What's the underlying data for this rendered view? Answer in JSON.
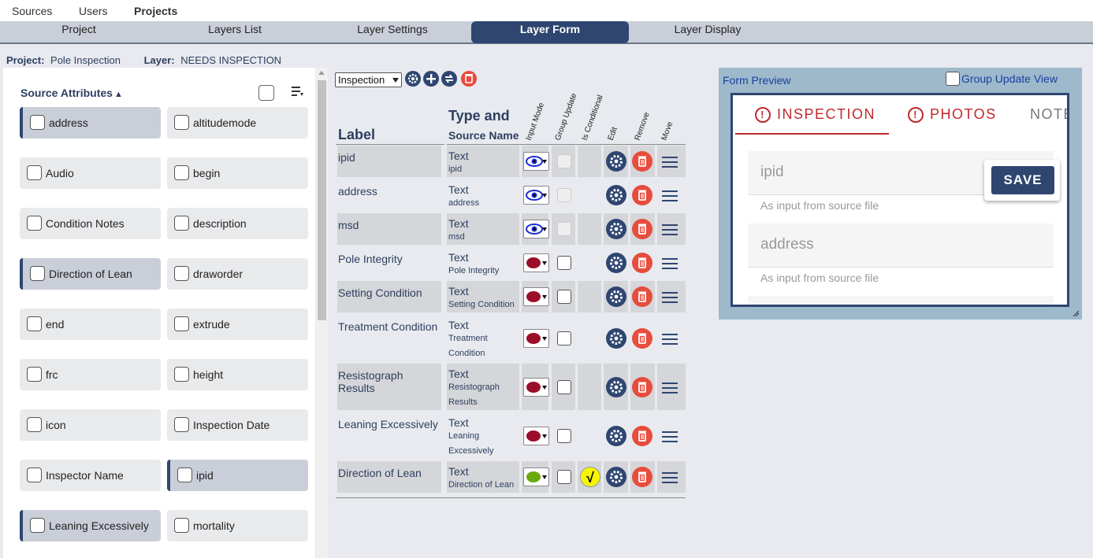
{
  "topnav": {
    "sources": "Sources",
    "users": "Users",
    "projects": "Projects"
  },
  "tabs": [
    "Project",
    "Layers List",
    "Layer Settings",
    "Layer Form",
    "Layer Display"
  ],
  "projinfo": {
    "project_label": "Project:",
    "project": "Pole Inspection",
    "layer_label": "Layer:",
    "layer": "NEEDS INSPECTION"
  },
  "source_attributes": {
    "title": "Source Attributes",
    "items": [
      {
        "label": "address",
        "selected": true
      },
      {
        "label": "altitudemode",
        "selected": false
      },
      {
        "label": "Audio",
        "selected": false
      },
      {
        "label": "begin",
        "selected": false
      },
      {
        "label": "Condition Notes",
        "selected": false
      },
      {
        "label": "description",
        "selected": false
      },
      {
        "label": "Direction of Lean",
        "selected": true
      },
      {
        "label": "draworder",
        "selected": false
      },
      {
        "label": "end",
        "selected": false
      },
      {
        "label": "extrude",
        "selected": false
      },
      {
        "label": "frc",
        "selected": false
      },
      {
        "label": "height",
        "selected": false
      },
      {
        "label": "icon",
        "selected": false
      },
      {
        "label": "Inspection Date",
        "selected": false
      },
      {
        "label": "Inspector Name",
        "selected": false
      },
      {
        "label": "ipid",
        "selected": true
      },
      {
        "label": "Leaning Excessively",
        "selected": true
      },
      {
        "label": "mortality",
        "selected": false
      }
    ]
  },
  "form": {
    "selected_form": "Inspection",
    "headers": {
      "label": "Label",
      "type": "Type and",
      "source": "Source Name",
      "input_mode": "Input Mode",
      "group_update": "Group Update",
      "is_conditional": "Is Conditional",
      "edit": "Edit",
      "remove": "Remove",
      "move": "Move"
    },
    "rows": [
      {
        "label": "ipid",
        "type": "Text",
        "source": "ipid",
        "mode": "eye",
        "group_update": "disabled",
        "conditional": false
      },
      {
        "label": "address",
        "type": "Text",
        "source": "address",
        "mode": "eye",
        "group_update": "disabled",
        "conditional": false
      },
      {
        "label": "msd",
        "type": "Text",
        "source": "msd",
        "mode": "eye",
        "group_update": "disabled",
        "conditional": false
      },
      {
        "label": "Pole Integrity",
        "type": "Text",
        "source": "Pole Integrity",
        "mode": "red",
        "group_update": "enabled",
        "conditional": false
      },
      {
        "label": "Setting Condition",
        "type": "Text",
        "source": "Setting Condition",
        "mode": "red",
        "group_update": "enabled",
        "conditional": false
      },
      {
        "label": "Treatment Condition",
        "type": "Text",
        "source": "Treatment Condition",
        "mode": "red",
        "group_update": "enabled",
        "conditional": false
      },
      {
        "label": "Resistograph Results",
        "type": "Text",
        "source": "Resistograph Results",
        "mode": "red",
        "group_update": "enabled",
        "conditional": false
      },
      {
        "label": "Leaning Excessively",
        "type": "Text",
        "source": "Leaning Excessively",
        "mode": "red",
        "group_update": "enabled",
        "conditional": false
      },
      {
        "label": "Direction of Lean",
        "type": "Text",
        "source": "Direction of Lean",
        "mode": "green",
        "group_update": "enabled",
        "conditional": true
      }
    ]
  },
  "preview": {
    "title": "Form Preview",
    "group_update_view": "Group Update View",
    "tabs": [
      "INSPECTION",
      "PHOTOS",
      "NOTE"
    ],
    "fields": [
      {
        "label": "ipid",
        "hint": "As input from source file"
      },
      {
        "label": "address",
        "hint": "As input from source file"
      }
    ],
    "save": "SAVE"
  },
  "colors": {
    "navy": "#2e4670",
    "red": "#e74c3c",
    "mode_red": "#9b0e2a",
    "mode_green": "#6aa80d",
    "preview_bg": "#9db9cb"
  }
}
